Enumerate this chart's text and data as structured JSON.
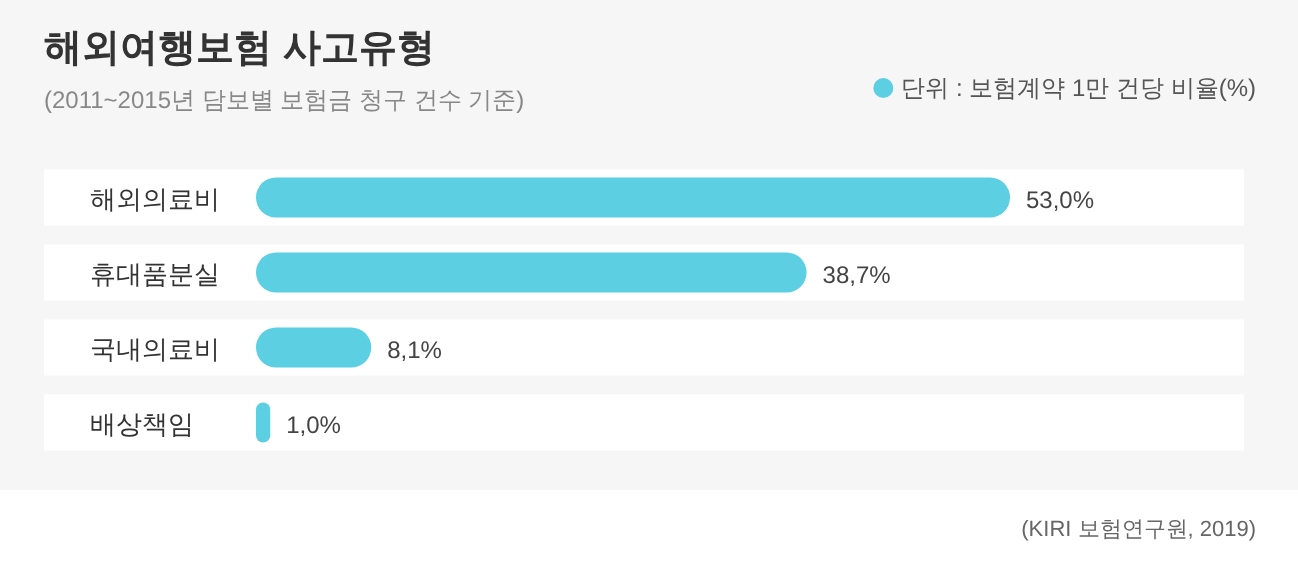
{
  "chart_data": {
    "type": "bar",
    "orientation": "horizontal",
    "title": "해외여행보험 사고유형",
    "subtitle": "(2011~2015년 담보별 보험금 청구 건수 기준)",
    "categories": [
      "해외의료비",
      "휴대품분실",
      "국내의료비",
      "배상책임"
    ],
    "series": [
      {
        "name": "단위 : 보험계약 1만 건당 비율(%)",
        "color": "#5ccfe2",
        "values": [
          53.0,
          38.7,
          8.1,
          1.0
        ],
        "value_labels": [
          "53,0%",
          "38,7%",
          "8,1%",
          "1,0%"
        ]
      }
    ],
    "legend": "top right",
    "annotations": [
      "(KIRI 보험연구원, 2019)"
    ]
  }
}
